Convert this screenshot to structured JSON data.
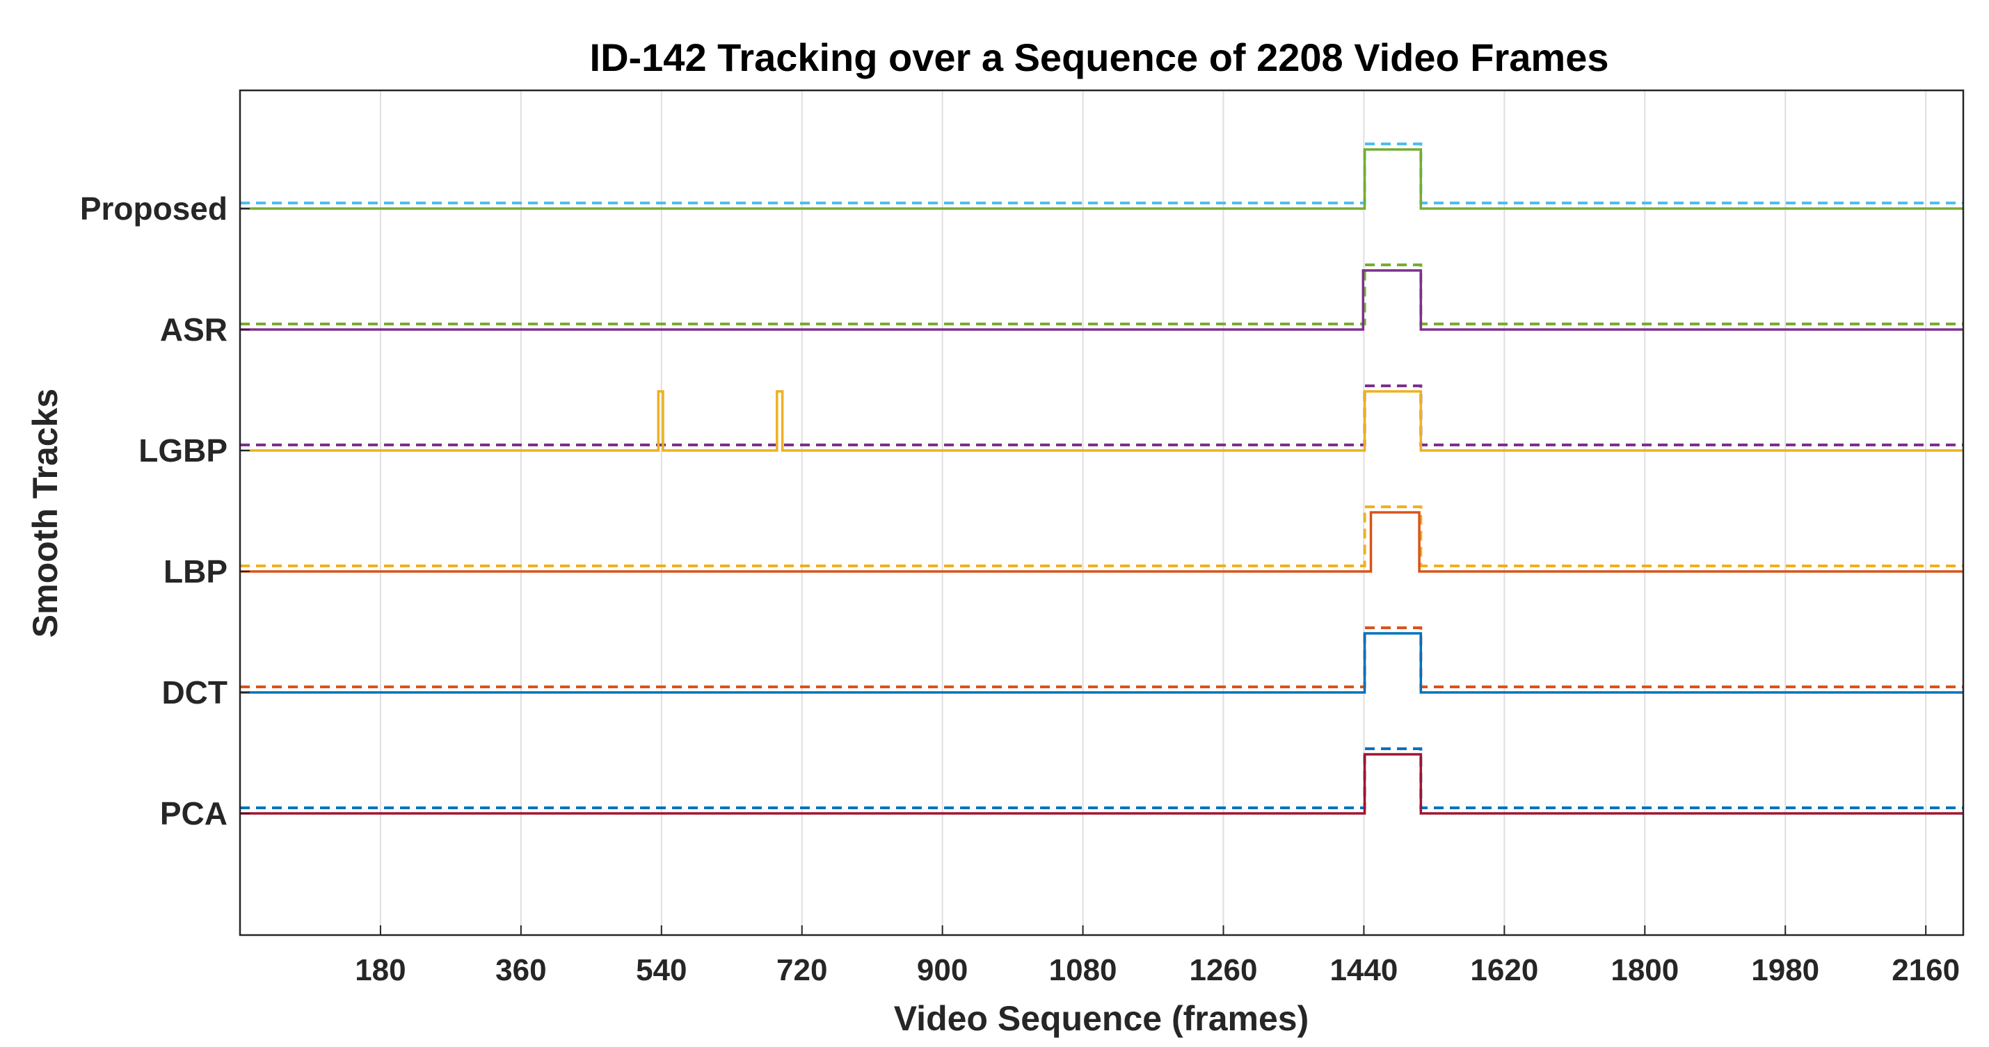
{
  "chart_data": {
    "type": "line",
    "title": "ID-142 Tracking over a Sequence of 2208 Video Frames",
    "xlabel": "Video Sequence (frames)",
    "ylabel": "Smooth Tracks",
    "xlim": [
      0,
      2208
    ],
    "xticks": [
      180,
      360,
      540,
      720,
      900,
      1080,
      1260,
      1440,
      1620,
      1800,
      1980,
      2160
    ],
    "grid": true,
    "tracks": [
      {
        "name": "Proposed",
        "color": "#77AC30",
        "ref_color": "#4DBEEE",
        "segments": [
          [
            1441,
            1513
          ]
        ],
        "ref_segments": [
          [
            1441,
            1513
          ]
        ]
      },
      {
        "name": "ASR",
        "color": "#7E2F8E",
        "ref_color": "#77AC30",
        "segments": [
          [
            1439,
            1513
          ]
        ],
        "ref_segments": [
          [
            1441,
            1513
          ]
        ]
      },
      {
        "name": "LGBP",
        "color": "#EDB120",
        "ref_color": "#7E2F8E",
        "segments": [
          [
            536,
            542
          ],
          [
            688,
            695
          ],
          [
            1441,
            1513
          ]
        ],
        "ref_segments": [
          [
            1441,
            1513
          ]
        ]
      },
      {
        "name": "LBP",
        "color": "#D95319",
        "ref_color": "#EDB120",
        "segments": [
          [
            1449,
            1511
          ]
        ],
        "ref_segments": [
          [
            1441,
            1513
          ]
        ]
      },
      {
        "name": "DCT",
        "color": "#0072BD",
        "ref_color": "#D95319",
        "segments": [
          [
            1441,
            1513
          ]
        ],
        "ref_segments": [
          [
            1441,
            1513
          ]
        ]
      },
      {
        "name": "PCA",
        "color": "#A2142F",
        "ref_color": "#0072BD",
        "segments": [
          [
            1441,
            1513
          ]
        ],
        "ref_segments": [
          [
            1441,
            1513
          ]
        ]
      }
    ]
  }
}
